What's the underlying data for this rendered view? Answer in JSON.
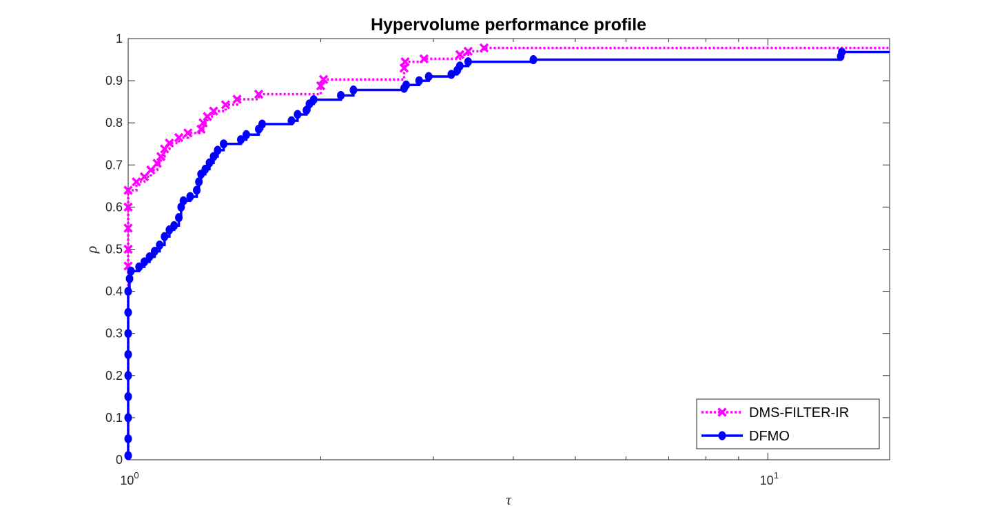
{
  "chart_data": {
    "type": "line",
    "title": "Hypervolume performance profile",
    "xlabel": "τ",
    "ylabel": "ρ",
    "xscale": "log",
    "xlim": [
      1,
      15.5
    ],
    "ylim": [
      0,
      1
    ],
    "x_ticks": [
      {
        "value": 1,
        "base": "10",
        "exp": "0"
      },
      {
        "value": 10,
        "base": "10",
        "exp": "1"
      }
    ],
    "y_ticks": [
      "0",
      "0.1",
      "0.2",
      "0.3",
      "0.4",
      "0.5",
      "0.6",
      "0.7",
      "0.8",
      "0.9",
      "1"
    ],
    "grid": false,
    "legend_position": "bottom-right",
    "series": [
      {
        "name": "DMS-FILTER-IR",
        "color": "#ff00ff",
        "line_style": "dotted",
        "marker": "x",
        "points": [
          [
            1.0,
            0.0
          ],
          [
            1.0,
            0.46
          ],
          [
            1.0,
            0.5
          ],
          [
            1.0,
            0.55
          ],
          [
            1.0,
            0.6
          ],
          [
            1.0,
            0.64
          ],
          [
            1.03,
            0.66
          ],
          [
            1.06,
            0.672
          ],
          [
            1.085,
            0.688
          ],
          [
            1.11,
            0.704
          ],
          [
            1.125,
            0.72
          ],
          [
            1.14,
            0.738
          ],
          [
            1.16,
            0.752
          ],
          [
            1.2,
            0.765
          ],
          [
            1.24,
            0.776
          ],
          [
            1.3,
            0.785
          ],
          [
            1.31,
            0.8
          ],
          [
            1.33,
            0.815
          ],
          [
            1.36,
            0.828
          ],
          [
            1.42,
            0.843
          ],
          [
            1.48,
            0.856
          ],
          [
            1.6,
            0.868
          ],
          [
            2.0,
            0.888
          ],
          [
            2.02,
            0.903
          ],
          [
            2.7,
            0.93
          ],
          [
            2.71,
            0.945
          ],
          [
            2.9,
            0.952
          ],
          [
            3.3,
            0.962
          ],
          [
            3.4,
            0.97
          ],
          [
            3.6,
            0.978
          ],
          [
            15.5,
            0.98
          ]
        ]
      },
      {
        "name": "DFMO",
        "color": "#0000ff",
        "line_style": "solid",
        "marker": "o",
        "points": [
          [
            1.0,
            0.01
          ],
          [
            1.0,
            0.05
          ],
          [
            1.0,
            0.1
          ],
          [
            1.0,
            0.15
          ],
          [
            1.0,
            0.2
          ],
          [
            1.0,
            0.25
          ],
          [
            1.0,
            0.3
          ],
          [
            1.0,
            0.35
          ],
          [
            1.0,
            0.4
          ],
          [
            1.005,
            0.43
          ],
          [
            1.01,
            0.448
          ],
          [
            1.04,
            0.458
          ],
          [
            1.06,
            0.47
          ],
          [
            1.08,
            0.482
          ],
          [
            1.1,
            0.495
          ],
          [
            1.12,
            0.51
          ],
          [
            1.14,
            0.53
          ],
          [
            1.16,
            0.546
          ],
          [
            1.18,
            0.556
          ],
          [
            1.2,
            0.575
          ],
          [
            1.21,
            0.6
          ],
          [
            1.22,
            0.615
          ],
          [
            1.25,
            0.625
          ],
          [
            1.28,
            0.64
          ],
          [
            1.29,
            0.66
          ],
          [
            1.3,
            0.678
          ],
          [
            1.32,
            0.69
          ],
          [
            1.34,
            0.705
          ],
          [
            1.36,
            0.72
          ],
          [
            1.38,
            0.735
          ],
          [
            1.41,
            0.75
          ],
          [
            1.5,
            0.76
          ],
          [
            1.53,
            0.772
          ],
          [
            1.6,
            0.785
          ],
          [
            1.62,
            0.797
          ],
          [
            1.8,
            0.805
          ],
          [
            1.84,
            0.82
          ],
          [
            1.9,
            0.83
          ],
          [
            1.92,
            0.845
          ],
          [
            1.95,
            0.855
          ],
          [
            2.15,
            0.865
          ],
          [
            2.25,
            0.878
          ],
          [
            2.7,
            0.882
          ],
          [
            2.72,
            0.89
          ],
          [
            2.85,
            0.9
          ],
          [
            2.95,
            0.91
          ],
          [
            3.2,
            0.915
          ],
          [
            3.27,
            0.925
          ],
          [
            3.3,
            0.935
          ],
          [
            3.4,
            0.945
          ],
          [
            4.3,
            0.95
          ],
          [
            13.0,
            0.958
          ],
          [
            13.05,
            0.968
          ],
          [
            15.5,
            0.968
          ]
        ]
      }
    ]
  }
}
